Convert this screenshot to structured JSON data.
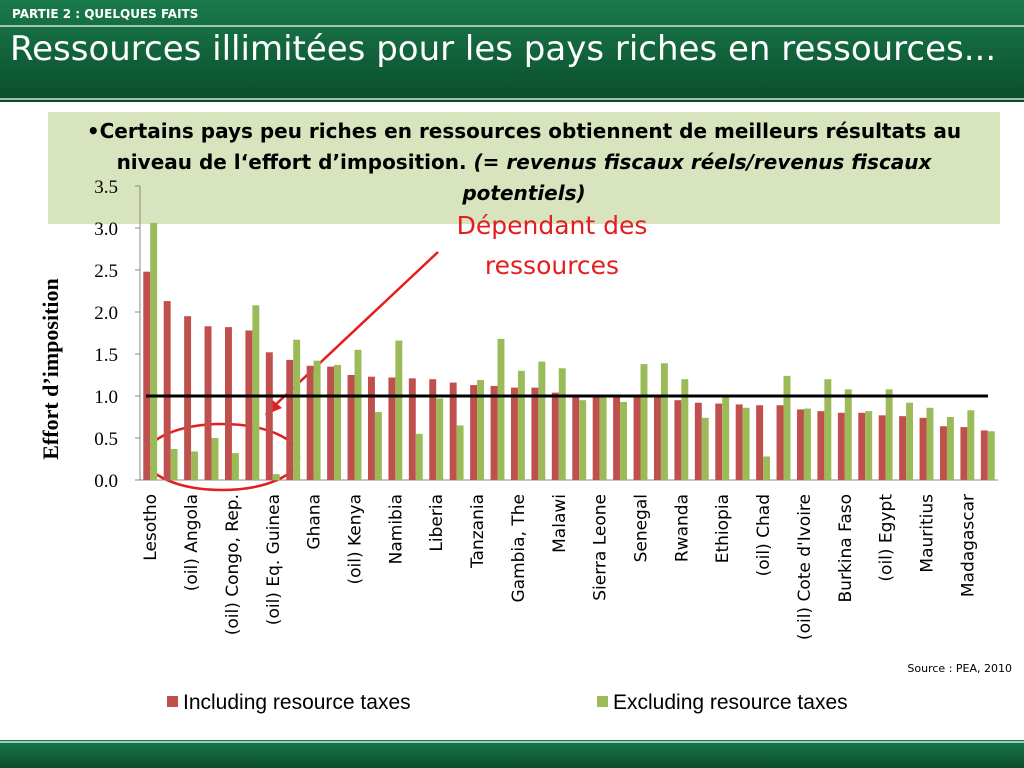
{
  "header": {
    "section": "PARTIE 2 : QUELQUES FAITS",
    "title": "Ressources illimitées pour les pays riches en ressources..."
  },
  "note": {
    "text": "•Certains pays peu riches en ressources obtiennent de meilleurs résultats au niveau de l‘effort d’imposition.",
    "italic": "(= revenus fiscaux réels/revenus fiscaux potentiels)"
  },
  "chart_data": {
    "type": "bar",
    "y_label": "Effort d’imposition",
    "categories": [
      "Lesotho",
      null,
      "(oil) Angola",
      null,
      "(oil) Congo, Rep.",
      null,
      "(oil) Eq. Guinea",
      null,
      "Ghana",
      null,
      "(oil) Kenya",
      null,
      "Namibia",
      null,
      "Liberia",
      null,
      "Tanzania",
      null,
      "Gambia, The",
      null,
      "Malawi",
      null,
      "Sierra Leone",
      null,
      "Senegal",
      null,
      "Rwanda",
      null,
      "Ethiopia",
      null,
      "(oil) Chad",
      null,
      "(oil) Cote d'Ivoire",
      null,
      "Burkina Faso",
      null,
      "(oil) Egypt",
      null,
      "Mauritius",
      null,
      "Madagascar",
      null
    ],
    "series": [
      {
        "name": "Including resource taxes",
        "color": "#c0504d",
        "values": [
          2.48,
          2.13,
          1.95,
          1.83,
          1.82,
          1.78,
          1.52,
          1.43,
          1.36,
          1.35,
          1.25,
          1.23,
          1.22,
          1.21,
          1.2,
          1.16,
          1.13,
          1.12,
          1.1,
          1.1,
          1.04,
          1.0,
          1.0,
          1.0,
          1.0,
          1.0,
          0.95,
          0.92,
          0.91,
          0.9,
          0.89,
          0.89,
          0.84,
          0.82,
          0.8,
          0.8,
          0.77,
          0.76,
          0.74,
          0.64,
          0.63,
          0.59
        ]
      },
      {
        "name": "Excluding resource taxes",
        "color": "#9bbb59",
        "values": [
          3.06,
          0.37,
          0.34,
          0.5,
          0.32,
          2.08,
          0.07,
          1.67,
          1.42,
          1.37,
          1.55,
          0.81,
          1.66,
          0.55,
          0.97,
          0.65,
          1.19,
          1.68,
          1.3,
          1.41,
          1.33,
          0.95,
          1.0,
          0.93,
          1.38,
          1.39,
          1.2,
          0.74,
          1.0,
          0.86,
          0.28,
          1.24,
          0.85,
          1.2,
          1.08,
          0.82,
          1.08,
          0.92,
          0.86,
          0.75,
          0.83,
          0.58
        ]
      }
    ],
    "ylim": [
      0,
      3.5
    ],
    "yticks": [
      {
        "value": 0,
        "label": "0.0"
      },
      {
        "value": 0.5,
        "label": "0.5"
      },
      {
        "value": 1,
        "label": "1.0"
      },
      {
        "value": 1.5,
        "label": "1.5"
      },
      {
        "value": 2,
        "label": "2.0"
      },
      {
        "value": 2.5,
        "label": "2.5"
      },
      {
        "value": 3,
        "label": "3.0"
      },
      {
        "value": 3.5,
        "label": "3.5"
      }
    ],
    "reference_line": 1,
    "annotation": [
      "Dépendant des",
      "ressources"
    ],
    "legend": "bottom"
  },
  "source": "Source : PEA, 2010"
}
